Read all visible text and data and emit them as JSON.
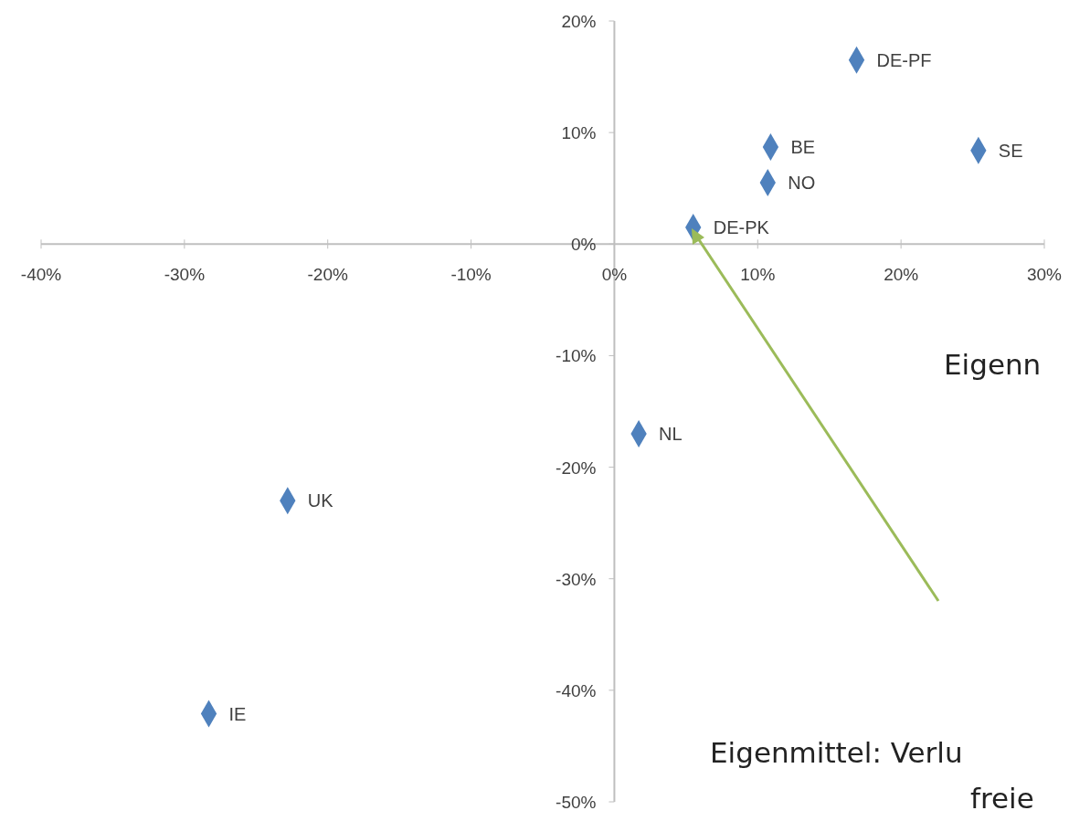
{
  "chart_data": {
    "type": "scatter",
    "marker": "diamond",
    "grid": false,
    "xlim": [
      -0.4,
      0.3
    ],
    "ylim": [
      -0.5,
      0.2
    ],
    "xticks": [
      {
        "value": -0.4,
        "label": "-40%"
      },
      {
        "value": -0.3,
        "label": "-30%"
      },
      {
        "value": -0.2,
        "label": "-20%"
      },
      {
        "value": -0.1,
        "label": "-10%"
      },
      {
        "value": 0,
        "label": "0%"
      },
      {
        "value": 0.1,
        "label": "10%"
      },
      {
        "value": 0.2,
        "label": "20%"
      },
      {
        "value": 0.3,
        "label": "30%"
      }
    ],
    "yticks": [
      {
        "value": -0.5,
        "label": "-50%"
      },
      {
        "value": -0.4,
        "label": "-40%"
      },
      {
        "value": -0.3,
        "label": "-30%"
      },
      {
        "value": -0.2,
        "label": "-20%"
      },
      {
        "value": -0.1,
        "label": "-10%"
      },
      {
        "value": 0,
        "label": "0%"
      },
      {
        "value": 0.1,
        "label": "10%"
      },
      {
        "value": 0.2,
        "label": "20%"
      }
    ],
    "series": [
      {
        "name": "DE-PF",
        "color": "#4f81bd",
        "x": [
          0.169
        ],
        "values": [
          0.165
        ]
      },
      {
        "name": "SE",
        "color": "#4f81bd",
        "x": [
          0.254
        ],
        "values": [
          0.084
        ]
      },
      {
        "name": "BE",
        "color": "#4f81bd",
        "x": [
          0.109
        ],
        "values": [
          0.087
        ]
      },
      {
        "name": "NO",
        "color": "#4f81bd",
        "x": [
          0.107
        ],
        "values": [
          0.055
        ]
      },
      {
        "name": "DE-PK",
        "color": "#4f81bd",
        "x": [
          0.055
        ],
        "values": [
          0.015
        ]
      },
      {
        "name": "NL",
        "color": "#4f81bd",
        "x": [
          0.017
        ],
        "values": [
          -0.17
        ]
      },
      {
        "name": "UK",
        "color": "#4f81bd",
        "x": [
          -0.228
        ],
        "values": [
          -0.23
        ]
      },
      {
        "name": "IE",
        "color": "#4f81bd",
        "x": [
          -0.283
        ],
        "values": [
          -0.421
        ]
      }
    ],
    "annotations": [
      "Eigenn",
      "Eigenmittel: Verlu",
      "freie"
    ]
  }
}
